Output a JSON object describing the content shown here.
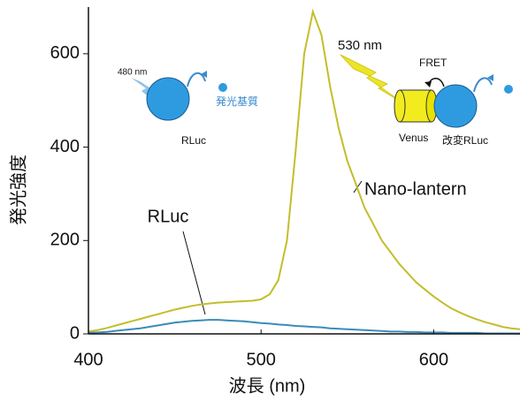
{
  "chart_data": {
    "type": "line",
    "x_label": "波長 (nm)",
    "y_label": "発光強度",
    "xlim": [
      400,
      650
    ],
    "xticks": [
      400,
      500,
      600
    ],
    "ylim": [
      0,
      700
    ],
    "yticks": [
      0,
      200,
      400,
      600
    ],
    "x": [
      400,
      405,
      410,
      415,
      420,
      425,
      430,
      435,
      440,
      445,
      450,
      455,
      460,
      465,
      470,
      475,
      480,
      485,
      490,
      495,
      500,
      505,
      510,
      515,
      520,
      525,
      530,
      535,
      540,
      545,
      550,
      555,
      560,
      565,
      570,
      575,
      580,
      585,
      590,
      595,
      600,
      605,
      610,
      615,
      620,
      625,
      630,
      635,
      640,
      645,
      650
    ],
    "series": [
      {
        "name": "Nano-lantern",
        "color": "#c4bd2c",
        "values": [
          5,
          8,
          12,
          17,
          22,
          27,
          32,
          37,
          42,
          47,
          52,
          56,
          60,
          63,
          65,
          67,
          68,
          69,
          70,
          71,
          74,
          85,
          115,
          200,
          390,
          600,
          690,
          640,
          530,
          440,
          370,
          320,
          270,
          235,
          200,
          175,
          150,
          130,
          110,
          95,
          80,
          67,
          55,
          46,
          38,
          31,
          25,
          20,
          15,
          12,
          10
        ]
      },
      {
        "name": "RLuc",
        "color": "#3b8bb8",
        "values": [
          2,
          3,
          4,
          6,
          8,
          10,
          12,
          15,
          18,
          21,
          24,
          26,
          28,
          29,
          30,
          30,
          29,
          28,
          27,
          25,
          23,
          22,
          20,
          19,
          17,
          16,
          15,
          14,
          12,
          11,
          10,
          9,
          8,
          7,
          6,
          5,
          5,
          4,
          4,
          3,
          3,
          3,
          2,
          2,
          2,
          2,
          1,
          1,
          1,
          1,
          1
        ]
      }
    ],
    "annotations": [
      "480 nm",
      "発光基質",
      "RLuc",
      "530 nm",
      "FRET",
      "Venus",
      "改変RLuc"
    ]
  }
}
